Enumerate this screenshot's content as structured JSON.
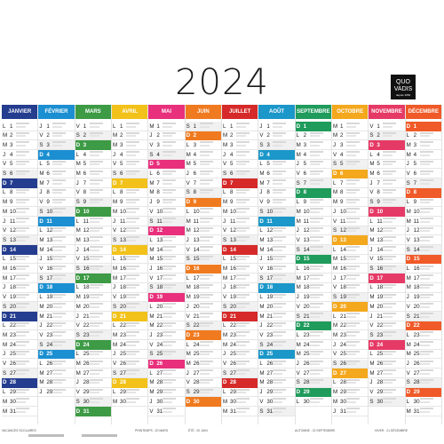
{
  "year": "2024",
  "brand": {
    "line1": "QUO",
    "line2": "VADIS",
    "line3": "depuis 1952"
  },
  "months": [
    {
      "name": "JANVIER",
      "color": "#253d8f",
      "days": 31,
      "start": 0
    },
    {
      "name": "FÉVRIER",
      "color": "#1b8fd1",
      "days": 29,
      "start": 3
    },
    {
      "name": "MARS",
      "color": "#3d9a45",
      "days": 31,
      "start": 4
    },
    {
      "name": "AVRIL",
      "color": "#f2c21a",
      "days": 30,
      "start": 0
    },
    {
      "name": "MAI",
      "color": "#e8307c",
      "days": 31,
      "start": 2
    },
    {
      "name": "JUIN",
      "color": "#f07a1f",
      "days": 30,
      "start": 5
    },
    {
      "name": "JUILLET",
      "color": "#d62a2a",
      "days": 31,
      "start": 0
    },
    {
      "name": "AOÛT",
      "color": "#1b97c9",
      "days": 31,
      "start": 3
    },
    {
      "name": "SEPTEMBRE",
      "color": "#1f9b5b",
      "days": 30,
      "start": 6
    },
    {
      "name": "OCTOBRE",
      "color": "#f4a81d",
      "days": 31,
      "start": 1
    },
    {
      "name": "NOVEMBRE",
      "color": "#e63a66",
      "days": 30,
      "start": 4
    },
    {
      "name": "DÉCEMBRE",
      "color": "#f05a28",
      "days": 31,
      "start": 6
    }
  ],
  "weekday_letters": [
    "L",
    "M",
    "M",
    "J",
    "V",
    "S",
    "D"
  ],
  "footer": {
    "left_label": "VACANCES SCOLAIRES",
    "seasons": [
      "PRINTEMPS : 20 MARS",
      "ÉTÉ : 20 JUIN",
      "AUTOMNE : 22 SEPTEMBRE",
      "HIVER : 21 DÉCEMBRE"
    ]
  }
}
